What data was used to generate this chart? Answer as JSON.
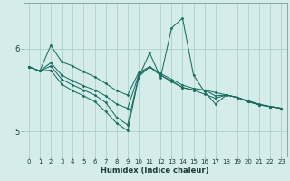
{
  "xlabel": "Humidex (Indice chaleur)",
  "bg_color": "#d4ecea",
  "line_color": "#1a6b60",
  "grid_color": "#aed0cc",
  "axis_color": "#7a9e9a",
  "text_color": "#1a3a36",
  "xlim": [
    -0.5,
    23.5
  ],
  "ylim": [
    4.7,
    6.55
  ],
  "yticks": [
    5.0,
    6.0
  ],
  "xticks": [
    0,
    1,
    2,
    3,
    4,
    5,
    6,
    7,
    8,
    9,
    10,
    11,
    12,
    13,
    14,
    15,
    16,
    17,
    18,
    19,
    20,
    21,
    22,
    23
  ],
  "line1_x": [
    0,
    1,
    2,
    3,
    4,
    5,
    6,
    7,
    8,
    9,
    10,
    11,
    12,
    13,
    14,
    15,
    16,
    17,
    18,
    19,
    20,
    21,
    22,
    23
  ],
  "line1_y": [
    5.78,
    5.73,
    6.04,
    5.84,
    5.79,
    5.72,
    5.66,
    5.58,
    5.49,
    5.44,
    5.71,
    5.78,
    5.7,
    5.63,
    5.56,
    5.52,
    5.5,
    5.47,
    5.44,
    5.41,
    5.37,
    5.33,
    5.3,
    5.28
  ],
  "line2_x": [
    0,
    1,
    2,
    3,
    4,
    5,
    6,
    7,
    8,
    9,
    10,
    11,
    12,
    13,
    14,
    15,
    16,
    17,
    18,
    19,
    20,
    21,
    22,
    23
  ],
  "line2_y": [
    5.78,
    5.73,
    5.83,
    5.68,
    5.61,
    5.55,
    5.5,
    5.43,
    5.33,
    5.28,
    5.68,
    5.78,
    5.68,
    5.6,
    5.53,
    5.5,
    5.5,
    5.43,
    5.44,
    5.41,
    5.36,
    5.32,
    5.3,
    5.28
  ],
  "line3_x": [
    0,
    1,
    2,
    3,
    4,
    5,
    6,
    7,
    8,
    9,
    10,
    11,
    12,
    13,
    14,
    15,
    16,
    17,
    18,
    19,
    20,
    21,
    22,
    23
  ],
  "line3_y": [
    5.78,
    5.73,
    5.79,
    5.63,
    5.56,
    5.5,
    5.44,
    5.35,
    5.17,
    5.08,
    5.66,
    5.78,
    5.68,
    5.61,
    5.53,
    5.5,
    5.45,
    5.4,
    5.44,
    5.41,
    5.36,
    5.32,
    5.3,
    5.28
  ],
  "line4_x": [
    0,
    1,
    2,
    3,
    4,
    5,
    6,
    7,
    8,
    9,
    10,
    11,
    12,
    13,
    14,
    15,
    16,
    17,
    18,
    19,
    20,
    21,
    22,
    23
  ],
  "line4_y": [
    5.78,
    5.73,
    5.74,
    5.57,
    5.49,
    5.43,
    5.36,
    5.24,
    5.1,
    5.01,
    5.65,
    5.95,
    5.65,
    6.25,
    6.37,
    5.68,
    5.48,
    5.33,
    5.44,
    5.41,
    5.36,
    5.32,
    5.3,
    5.28
  ]
}
